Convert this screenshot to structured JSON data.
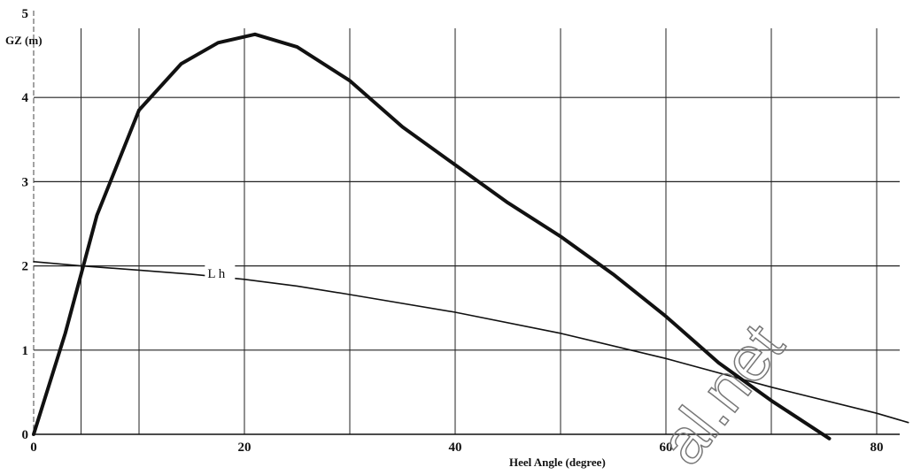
{
  "chart_data": {
    "type": "line",
    "xlabel": "Heel Angle (degree)",
    "ylabel": "GZ (m)",
    "xlim": [
      0,
      83
    ],
    "ylim": [
      0,
      5
    ],
    "x_ticks": [
      0,
      20,
      40,
      60,
      80
    ],
    "y_ticks": [
      0,
      1,
      2,
      3,
      4,
      5
    ],
    "x_grid": [
      0,
      4.5,
      10,
      20,
      30,
      40,
      50,
      60,
      70,
      80
    ],
    "y_grid": [
      1,
      2,
      3,
      4
    ],
    "grid": true,
    "series": [
      {
        "name": "",
        "style": "thick",
        "x": [
          0,
          3,
          6,
          10,
          14,
          17.5,
          21,
          25,
          30,
          35,
          40,
          45,
          50,
          55,
          60,
          65,
          70,
          75.5
        ],
        "y": [
          0,
          1.2,
          2.6,
          3.85,
          4.4,
          4.65,
          4.75,
          4.6,
          4.2,
          3.65,
          3.2,
          2.75,
          2.35,
          1.9,
          1.4,
          0.85,
          0.4,
          -0.05
        ]
      },
      {
        "name": "L h",
        "style": "thin",
        "x": [
          0,
          4.5,
          10,
          15,
          20,
          25,
          30,
          40,
          50,
          60,
          70,
          80,
          83
        ],
        "y": [
          2.05,
          2.0,
          1.95,
          1.9,
          1.84,
          1.76,
          1.66,
          1.45,
          1.2,
          0.9,
          0.56,
          0.25,
          0.14
        ]
      }
    ],
    "annotations": [
      {
        "text": "L h",
        "x": 16.5,
        "y": 1.87
      }
    ]
  },
  "watermark": "al.net"
}
